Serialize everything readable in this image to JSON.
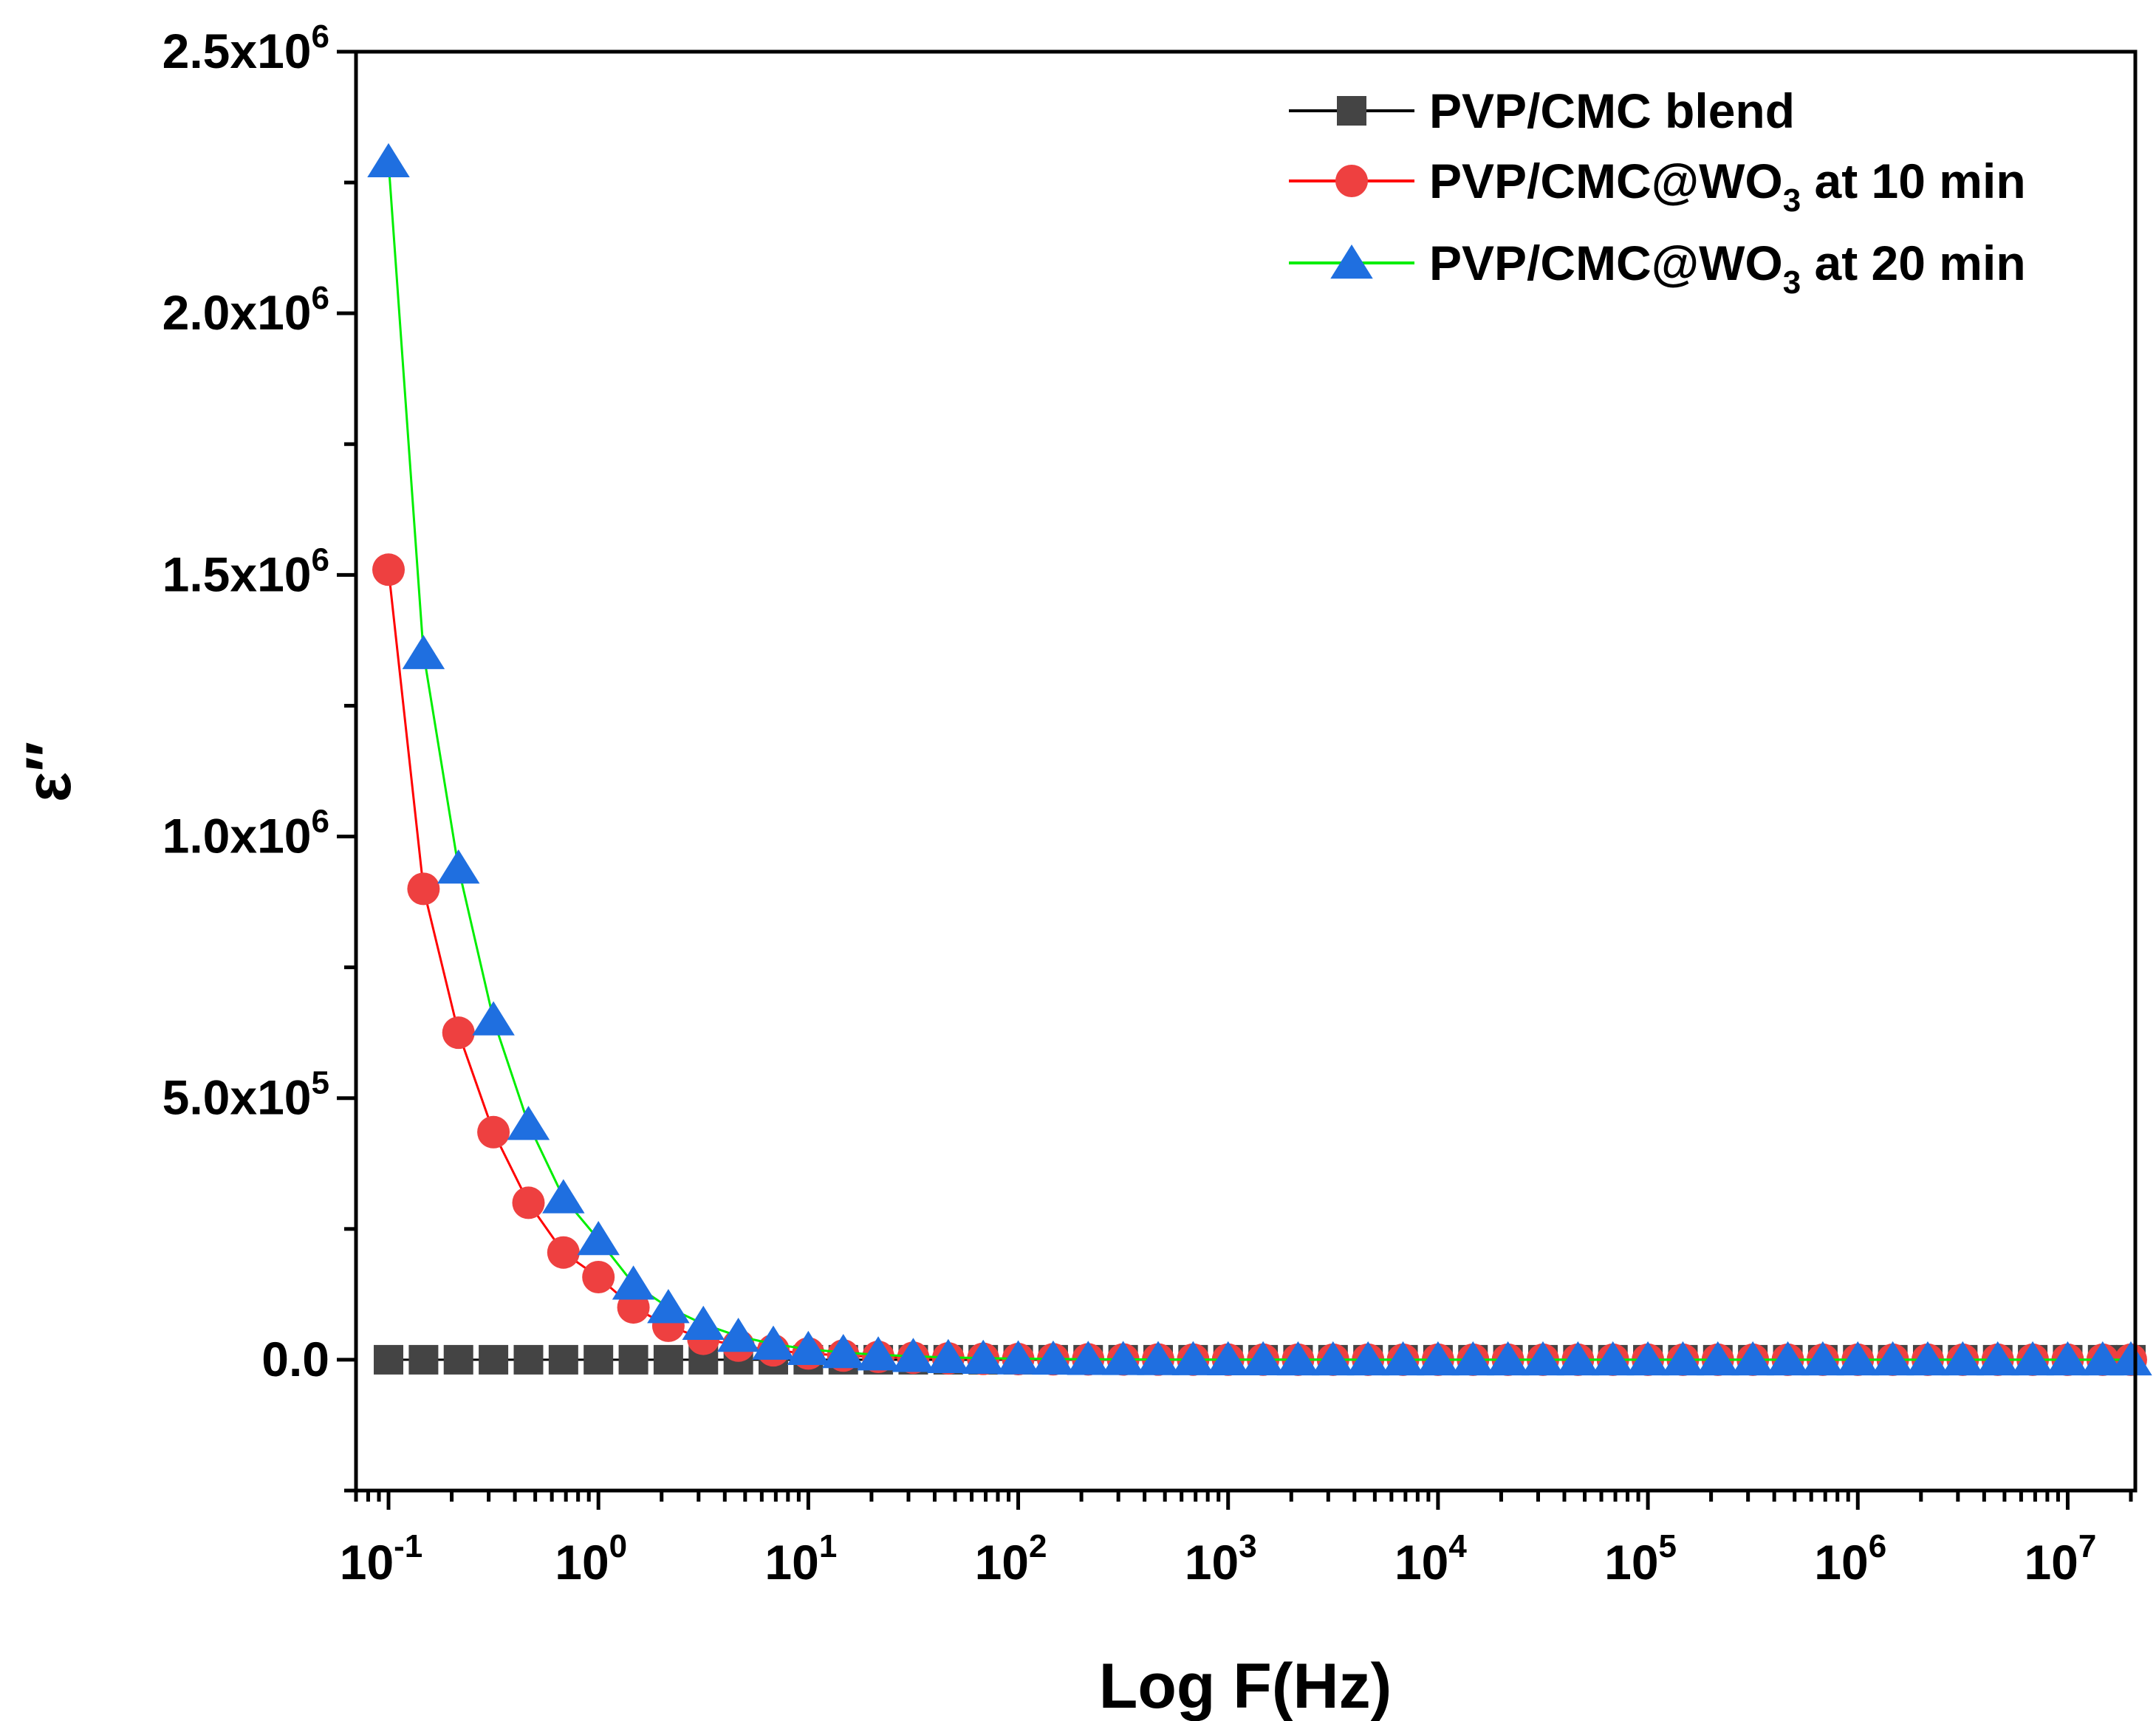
{
  "chart_data": {
    "type": "line",
    "xlabel": "Log F(Hz)",
    "ylabel": "ε″",
    "xscale": "log",
    "xlim": [
      0.07,
      21000000
    ],
    "ylim": [
      -250000,
      2500000
    ],
    "legend_position": "top-right",
    "grid": false,
    "x_tick_labels": [
      {
        "value": 0.1,
        "base": "10",
        "exp": "-1"
      },
      {
        "value": 1,
        "base": "10",
        "exp": "0"
      },
      {
        "value": 10,
        "base": "10",
        "exp": "1"
      },
      {
        "value": 100,
        "base": "10",
        "exp": "2"
      },
      {
        "value": 1000,
        "base": "10",
        "exp": "3"
      },
      {
        "value": 10000,
        "base": "10",
        "exp": "4"
      },
      {
        "value": 100000,
        "base": "10",
        "exp": "5"
      },
      {
        "value": 1000000,
        "base": "10",
        "exp": "6"
      },
      {
        "value": 10000000,
        "base": "10",
        "exp": "7"
      }
    ],
    "y_tick_labels": [
      {
        "value": 0,
        "mantissa": "0.0",
        "exp": ""
      },
      {
        "value": 500000,
        "mantissa": "5.0x10",
        "exp": "5"
      },
      {
        "value": 1000000,
        "mantissa": "1.0x10",
        "exp": "6"
      },
      {
        "value": 1500000,
        "mantissa": "1.5x10",
        "exp": "6"
      },
      {
        "value": 2000000,
        "mantissa": "2.0x10",
        "exp": "6"
      },
      {
        "value": 2500000,
        "mantissa": "2.5x10",
        "exp": "6"
      }
    ],
    "x": [
      0.1,
      0.1468,
      0.2154,
      0.3162,
      0.4642,
      0.6813,
      1,
      1.468,
      2.154,
      3.162,
      4.642,
      6.813,
      10,
      14.68,
      21.54,
      31.62,
      46.42,
      68.13,
      100,
      146.8,
      215.4,
      316.2,
      464.2,
      681.3,
      1000,
      1468,
      2154,
      3162,
      4642,
      6813,
      10000,
      14680,
      21540,
      31620,
      46420,
      68130,
      100000,
      146800,
      215400,
      316200,
      464200,
      681300,
      1000000,
      1468000,
      2154000,
      3162000,
      4642000,
      6813000,
      10000000,
      14680000,
      20000000
    ],
    "series": [
      {
        "name": "PVP/CMC blend",
        "marker": "square",
        "line_color": "#000000",
        "marker_color": "#444444",
        "values": [
          0,
          0,
          0,
          0,
          0,
          0,
          0,
          0,
          0,
          0,
          0,
          0,
          0,
          0,
          0,
          0,
          0,
          0,
          0,
          0,
          0,
          0,
          0,
          0,
          0,
          0,
          0,
          0,
          0,
          0,
          0,
          0,
          0,
          0,
          0,
          0,
          0,
          0,
          0,
          0,
          0,
          0,
          0,
          0,
          0,
          0,
          0,
          0,
          0,
          0,
          0
        ]
      },
      {
        "name": "PVP/CMC@WO",
        "name_sub": "3",
        "name_suffix": " at 10 min",
        "marker": "circle",
        "line_color": "#ff0000",
        "marker_color": "#ee4040",
        "values": [
          1510000,
          900000,
          625000,
          435000,
          300000,
          205000,
          158000,
          100000,
          65000,
          40000,
          27000,
          18000,
          12000,
          8000,
          5500,
          3800,
          2600,
          1800,
          1200,
          900,
          700,
          500,
          400,
          300,
          200,
          150,
          120,
          100,
          80,
          60,
          50,
          40,
          30,
          25,
          20,
          15,
          12,
          10,
          8,
          6,
          5,
          4,
          3,
          3,
          2,
          2,
          2,
          1,
          1,
          1,
          1
        ]
      },
      {
        "name": "PVP/CMC@WO",
        "name_sub": "3",
        "name_suffix": " at 20 min",
        "marker": "triangle",
        "line_color": "#00ee00",
        "marker_color": "#1f6fe0",
        "values": [
          2290000,
          1350000,
          940000,
          650000,
          450000,
          310000,
          230000,
          145000,
          100000,
          68000,
          45000,
          30000,
          20000,
          14000,
          9500,
          6500,
          4500,
          3000,
          2000,
          1400,
          1000,
          700,
          500,
          350,
          250,
          180,
          130,
          100,
          75,
          55,
          40,
          30,
          22,
          17,
          13,
          10,
          8,
          6,
          5,
          4,
          3,
          3,
          2,
          2,
          2,
          1,
          1,
          1,
          1,
          1,
          1
        ]
      }
    ]
  }
}
